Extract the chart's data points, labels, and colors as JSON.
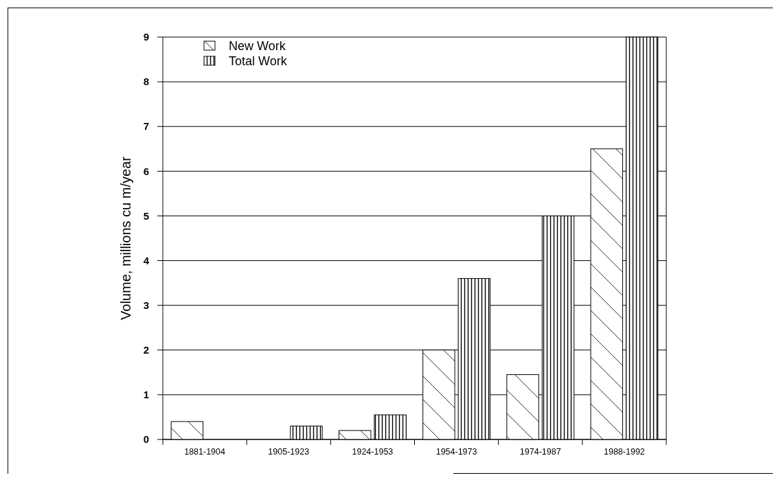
{
  "chart_data": {
    "type": "bar",
    "ylabel": "Volume, millions cu m/year",
    "categories": [
      "1881-1904",
      "1905-1923",
      "1924-1953",
      "1954-1973",
      "1974-1987",
      "1988-1992"
    ],
    "series": [
      {
        "name": "New Work",
        "color": "#000000",
        "values": [
          0.4,
          null,
          0.2,
          2.0,
          1.45,
          6.5
        ]
      },
      {
        "name": "Total Work",
        "color": "#000000",
        "values": [
          null,
          0.3,
          0.55,
          3.6,
          5.0,
          9.0
        ]
      }
    ],
    "ylim": [
      0,
      9
    ],
    "yticks": [
      0,
      1,
      2,
      3,
      4,
      5,
      6,
      7,
      8,
      9
    ],
    "grid": "y",
    "legend": "top left"
  }
}
